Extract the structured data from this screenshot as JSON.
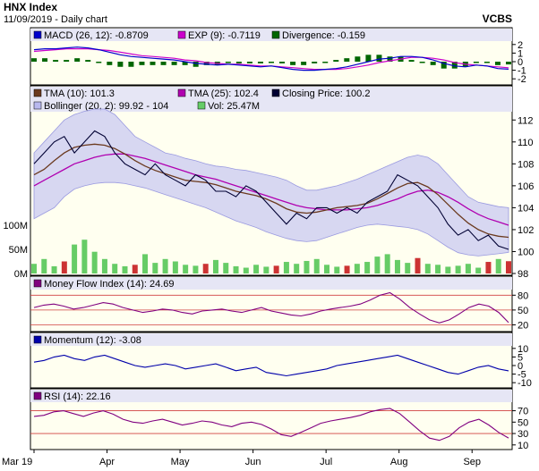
{
  "header": {
    "title": "HNX Index",
    "subtitle": "11/09/2019 - Daily chart",
    "brand": "VCBS"
  },
  "colors": {
    "panel_bg": "#fffff0",
    "legend_bg": "#e6e6f5",
    "bollinger_fill": "#c9c9f2",
    "tma10": "#6b3a1f",
    "tma25": "#b000b0",
    "close": "#000033",
    "macd": "#0000cc",
    "exp": "#cc00cc",
    "divergence": "#006600",
    "volume": "#66cc66",
    "volume_down": "#cc3333",
    "mfi": "#800080",
    "momentum": "#0000aa",
    "rsi": "#800080",
    "ref_line": "#d04040",
    "overbought_fill": "#ff6666",
    "oversold_fill": "#6666ff"
  },
  "legends": {
    "macd": [
      {
        "label": "MACD (26, 12): -0.8709",
        "color": "#0000cc"
      },
      {
        "label": "EXP (9): -0.7119",
        "color": "#cc00cc"
      },
      {
        "label": "Divergence: -0.159",
        "color": "#006600"
      }
    ],
    "price1": [
      {
        "label": "TMA (10): 101.3",
        "color": "#6b3a1f"
      },
      {
        "label": "TMA (25): 102.4",
        "color": "#b000b0"
      },
      {
        "label": "Closing Price: 100.2",
        "color": "#000033"
      }
    ],
    "price2": [
      {
        "label": "Bollinger (20, 2): 99.92 - 104",
        "color": "#8a8ad8"
      },
      {
        "label": "Vol: 25.47M",
        "color": "#66cc66"
      }
    ],
    "mfi": [
      {
        "label": "Money Flow Index (14): 24.69",
        "color": "#800080"
      }
    ],
    "momentum": [
      {
        "label": "Momentum (12): -3.08",
        "color": "#0000aa"
      }
    ],
    "rsi": [
      {
        "label": "RSI (14): 22.16",
        "color": "#800080"
      }
    ]
  },
  "chart_data": [
    {
      "type": "line",
      "panel": "macd",
      "y_ticks": [
        "2",
        "1",
        "0",
        "-1",
        "-2"
      ],
      "ylim": [
        -2.5,
        2.5
      ],
      "series": [
        {
          "name": "MACD (26, 12)",
          "values": [
            1.4,
            1.5,
            1.5,
            1.6,
            1.7,
            1.6,
            1.4,
            1.1,
            0.8,
            0.6,
            0.5,
            0.4,
            0.3,
            0.2,
            0.0,
            -0.2,
            -0.3,
            -0.4,
            -0.3,
            -0.4,
            -0.5,
            -0.6,
            -0.5,
            -0.7,
            -0.9,
            -1.0,
            -1.0,
            -0.9,
            -0.8,
            -0.6,
            -0.3,
            0.0,
            0.3,
            0.4,
            0.6,
            0.6,
            0.5,
            0.2,
            -0.2,
            -0.5,
            -0.6,
            -0.4,
            -0.5,
            -0.8,
            -0.87
          ]
        },
        {
          "name": "EXP (9)",
          "values": [
            1.2,
            1.3,
            1.4,
            1.5,
            1.5,
            1.5,
            1.4,
            1.3,
            1.1,
            0.9,
            0.7,
            0.6,
            0.5,
            0.4,
            0.2,
            0.1,
            -0.1,
            -0.2,
            -0.3,
            -0.3,
            -0.4,
            -0.5,
            -0.5,
            -0.6,
            -0.7,
            -0.8,
            -0.9,
            -0.9,
            -0.9,
            -0.8,
            -0.6,
            -0.4,
            -0.1,
            0.1,
            0.3,
            0.5,
            0.5,
            0.4,
            0.2,
            -0.1,
            -0.3,
            -0.4,
            -0.5,
            -0.6,
            -0.71
          ]
        }
      ]
    },
    {
      "type": "line",
      "panel": "price",
      "y_ticks": [
        "112",
        "110",
        "108",
        "106",
        "104",
        "102",
        "100",
        "98"
      ],
      "ylim": [
        98,
        113
      ],
      "vol_ticks": [
        "100M",
        "50M",
        "0M"
      ],
      "vol_max": 100,
      "series": [
        {
          "name": "Closing Price",
          "values": [
            108,
            109,
            110,
            110.5,
            109,
            110,
            111,
            110.5,
            109,
            108,
            107.5,
            107,
            108,
            107,
            106.5,
            106,
            107,
            106.5,
            105.5,
            105.5,
            105,
            106,
            105.5,
            104.5,
            103.5,
            102.5,
            103.5,
            103,
            104,
            104,
            103.5,
            104,
            103.5,
            104.5,
            105,
            105.5,
            107,
            106.5,
            106,
            105,
            104,
            102.5,
            101.5,
            102,
            101,
            101.5,
            100.5,
            100.2
          ]
        },
        {
          "name": "TMA (10)",
          "values": [
            107,
            107.5,
            108.3,
            109,
            109.5,
            109.7,
            109.8,
            109.7,
            109.4,
            108.9,
            108.3,
            107.8,
            107.4,
            107.1,
            106.8,
            106.5,
            106.4,
            106.3,
            106.1,
            105.8,
            105.5,
            105.3,
            105.1,
            104.8,
            104.4,
            103.9,
            103.6,
            103.5,
            103.6,
            103.8,
            104.0,
            104.1,
            104.2,
            104.4,
            104.8,
            105.3,
            105.8,
            106.2,
            106.3,
            105.9,
            105.2,
            104.3,
            103.4,
            102.6,
            102.0,
            101.6,
            101.4,
            101.3
          ]
        },
        {
          "name": "TMA (25)",
          "values": [
            106,
            106.5,
            107,
            107.5,
            108,
            108.3,
            108.6,
            108.8,
            108.9,
            108.9,
            108.7,
            108.5,
            108.2,
            107.9,
            107.6,
            107.3,
            107.0,
            106.8,
            106.6,
            106.3,
            106.0,
            105.7,
            105.4,
            105.1,
            104.8,
            104.5,
            104.2,
            104.0,
            103.9,
            103.8,
            103.8,
            103.8,
            103.9,
            104.0,
            104.2,
            104.5,
            104.8,
            105.2,
            105.5,
            105.6,
            105.4,
            105.0,
            104.5,
            103.9,
            103.4,
            103.0,
            102.7,
            102.4
          ]
        },
        {
          "name": "Bollinger upper",
          "values": [
            109,
            110,
            111,
            112,
            112.5,
            112.8,
            113,
            113,
            112.5,
            111.5,
            110.5,
            110,
            109.5,
            109,
            108.8,
            108.5,
            108.3,
            108,
            107.8,
            107.7,
            107.5,
            107.4,
            107.2,
            107,
            106.8,
            106.5,
            106,
            105.6,
            105.6,
            105.8,
            106,
            106.3,
            106.6,
            107,
            107.4,
            107.8,
            108.2,
            108.6,
            108.8,
            108.6,
            108,
            107,
            106,
            105,
            104.5,
            104.3,
            104.1,
            104
          ]
        },
        {
          "name": "Bollinger lower",
          "values": [
            103,
            103.5,
            104,
            105,
            105.7,
            106,
            106.2,
            106.3,
            106.3,
            106.2,
            106,
            105.8,
            105.5,
            105.2,
            104.9,
            104.6,
            104.3,
            104,
            103.6,
            103.2,
            102.8,
            102.5,
            102.2,
            101.8,
            101.5,
            101.2,
            101,
            100.9,
            101,
            101.3,
            101.6,
            101.9,
            102.2,
            102.4,
            102.5,
            102.4,
            102.3,
            102.2,
            102,
            101.6,
            101,
            100.4,
            99.9,
            99.7,
            99.6,
            99.7,
            99.8,
            99.92
          ]
        }
      ],
      "volume": [
        20,
        30,
        15,
        25,
        60,
        70,
        45,
        30,
        20,
        15,
        18,
        40,
        22,
        30,
        25,
        18,
        16,
        20,
        28,
        22,
        15,
        12,
        18,
        14,
        16,
        24,
        20,
        26,
        30,
        18,
        14,
        16,
        20,
        24,
        35,
        40,
        28,
        22,
        32,
        20,
        18,
        14,
        16,
        20,
        12,
        24,
        30,
        25.47
      ]
    },
    {
      "type": "line",
      "panel": "mfi",
      "y_ticks": [
        "80",
        "50",
        "20"
      ],
      "ylim": [
        10,
        95
      ],
      "ref_lines": [
        80,
        50,
        20
      ],
      "series": [
        {
          "name": "Money Flow Index (14)",
          "values": [
            55,
            60,
            62,
            58,
            52,
            55,
            60,
            65,
            62,
            55,
            50,
            45,
            48,
            52,
            50,
            45,
            42,
            48,
            50,
            52,
            48,
            45,
            50,
            55,
            48,
            44,
            40,
            38,
            42,
            48,
            52,
            55,
            58,
            62,
            70,
            80,
            85,
            72,
            55,
            42,
            30,
            24,
            30,
            42,
            55,
            62,
            58,
            45,
            24.69
          ]
        }
      ]
    },
    {
      "type": "line",
      "panel": "momentum",
      "y_ticks": [
        "10",
        "5",
        "0",
        "-5",
        "-10"
      ],
      "ylim": [
        -12,
        12
      ],
      "series": [
        {
          "name": "Momentum (12)",
          "values": [
            2,
            3,
            5,
            6,
            4,
            3,
            5,
            6,
            4,
            2,
            0,
            -1,
            0,
            1,
            0,
            -2,
            -1,
            0,
            1,
            -1,
            -3,
            -2,
            -1,
            -4,
            -5,
            -6,
            -5,
            -4,
            -3,
            -2,
            0,
            1,
            2,
            3,
            4,
            5,
            6,
            4,
            2,
            0,
            -2,
            -4,
            -5,
            -3,
            -1,
            0,
            -2,
            -3.08
          ]
        }
      ]
    },
    {
      "type": "line",
      "panel": "rsi",
      "y_ticks": [
        "70",
        "50",
        "30",
        "10"
      ],
      "ylim": [
        5,
        85
      ],
      "ref_lines": [
        70,
        30
      ],
      "series": [
        {
          "name": "RSI (14)",
          "values": [
            60,
            62,
            68,
            70,
            65,
            60,
            66,
            70,
            64,
            55,
            50,
            48,
            52,
            55,
            50,
            45,
            48,
            52,
            50,
            45,
            42,
            48,
            50,
            46,
            38,
            28,
            25,
            32,
            40,
            48,
            52,
            55,
            58,
            62,
            68,
            72,
            74,
            65,
            50,
            35,
            22,
            18,
            25,
            40,
            50,
            55,
            45,
            32,
            22.16
          ]
        }
      ]
    }
  ],
  "x_axis": {
    "labels": [
      "Mar 19",
      "Apr",
      "May",
      "Jun",
      "Jul",
      "Aug",
      "Sep"
    ]
  }
}
